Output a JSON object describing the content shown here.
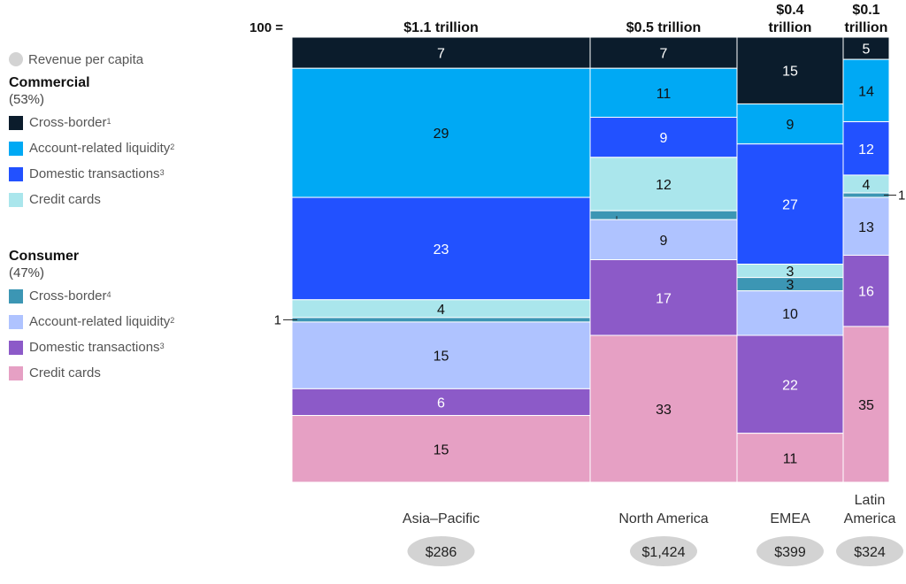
{
  "legend": {
    "revenue_label": "Revenue per capita",
    "commercial": {
      "title": "Commercial",
      "share": "(53%)",
      "items": [
        {
          "label": "Cross-border",
          "sup": "1",
          "color": "#0b1c2c"
        },
        {
          "label": "Account-related liquidity",
          "sup": "2",
          "color": "#00a9f4"
        },
        {
          "label": "Domestic transactions",
          "sup": "3",
          "color": "#2251ff"
        },
        {
          "label": "Credit cards",
          "sup": "",
          "color": "#aae6ec"
        }
      ]
    },
    "consumer": {
      "title": "Consumer",
      "share": "(47%)",
      "items": [
        {
          "label": "Cross-border",
          "sup": "4",
          "color": "#3c96b4"
        },
        {
          "label": "Account-related liquidity",
          "sup": "2",
          "color": "#afc3ff"
        },
        {
          "label": "Domestic transactions",
          "sup": "3",
          "color": "#8c5ac8"
        },
        {
          "label": "Credit cards",
          "sup": "",
          "color": "#e6a0c4"
        }
      ]
    }
  },
  "chart_data": {
    "type": "marimekko",
    "total_prefix": "100 =",
    "segments": [
      "Commercial cross-border",
      "Commercial account-related liquidity",
      "Commercial domestic transactions",
      "Commercial credit cards",
      "Consumer cross-border",
      "Consumer account-related liquidity",
      "Consumer domestic transactions",
      "Consumer credit cards"
    ],
    "colors": [
      "#0b1c2c",
      "#00a9f4",
      "#2251ff",
      "#aae6ec",
      "#3c96b4",
      "#afc3ff",
      "#8c5ac8",
      "#e6a0c4"
    ],
    "columns": [
      {
        "region": [
          "Asia–Pacific"
        ],
        "total": [
          "$1.1 trillion"
        ],
        "total_trillion": 1.1,
        "revenue_per_capita": "$286",
        "values": [
          7,
          29,
          23,
          4,
          1,
          15,
          6,
          15
        ]
      },
      {
        "region": [
          "North America"
        ],
        "total": [
          "$0.5 trillion"
        ],
        "total_trillion": 0.5,
        "revenue_per_capita": "$1,424",
        "values": [
          7,
          11,
          9,
          12,
          2,
          9,
          17,
          33
        ]
      },
      {
        "region": [
          "EMEA"
        ],
        "total": [
          "$0.4",
          "trillion"
        ],
        "total_trillion": 0.4,
        "revenue_per_capita": "$399",
        "values": [
          15,
          9,
          27,
          3,
          3,
          10,
          22,
          11
        ]
      },
      {
        "region": [
          "Latin",
          "America"
        ],
        "total": [
          "$0.1",
          "trillion"
        ],
        "total_trillion": 0.1,
        "revenue_per_capita": "$324",
        "values": [
          5,
          14,
          12,
          4,
          1,
          13,
          16,
          35
        ]
      }
    ]
  }
}
